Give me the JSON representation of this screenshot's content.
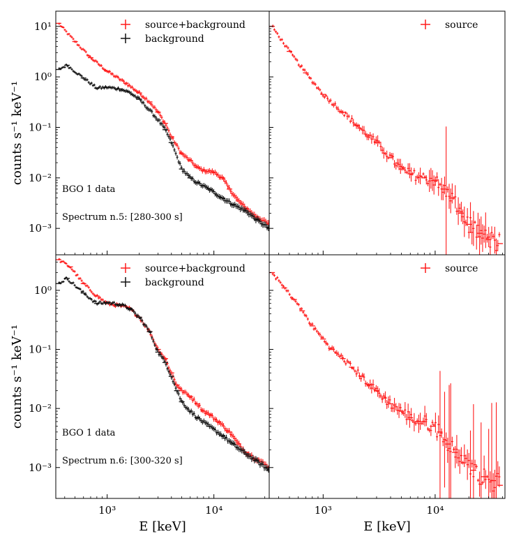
{
  "colors": {
    "source_background": "#ff1a1a",
    "background": "#111111",
    "source": "#ff1a1a"
  },
  "chart_data": [
    {
      "type": "scatter",
      "panel": "top-left",
      "xscale": "log",
      "yscale": "log",
      "xlim": [
        330,
        33000
      ],
      "ylim": [
        0.0003,
        20
      ],
      "ylabel": "counts s⁻¹ keV⁻¹",
      "xlabel": "",
      "yticks": [
        "10⁻³",
        "10⁻²",
        "10⁻¹",
        "10⁰",
        "10¹"
      ],
      "xticks": [],
      "legend_position": "top-right",
      "annotations": [
        "BGO 1 data",
        "Spectrum n.5: [280-300 s]"
      ],
      "series": [
        {
          "name": "source+background",
          "color_key": "source_background",
          "points": [
            [
              350,
              11.5
            ],
            [
              500,
              5.0
            ],
            [
              700,
              2.4
            ],
            [
              1000,
              1.3
            ],
            [
              1500,
              0.75
            ],
            [
              2000,
              0.48
            ],
            [
              2500,
              0.32
            ],
            [
              3000,
              0.2
            ],
            [
              3500,
              0.12
            ],
            [
              4000,
              0.065
            ],
            [
              5000,
              0.03
            ],
            [
              6000,
              0.022
            ],
            [
              7000,
              0.016
            ],
            [
              8000,
              0.014
            ],
            [
              10000,
              0.013
            ],
            [
              12000,
              0.01
            ],
            [
              14000,
              0.006
            ],
            [
              17000,
              0.0035
            ],
            [
              20000,
              0.0025
            ],
            [
              25000,
              0.0017
            ],
            [
              33000,
              0.0012
            ]
          ]
        },
        {
          "name": "background",
          "color_key": "background",
          "points": [
            [
              350,
              1.4
            ],
            [
              420,
              1.7
            ],
            [
              600,
              0.95
            ],
            [
              800,
              0.6
            ],
            [
              1000,
              0.62
            ],
            [
              1300,
              0.58
            ],
            [
              1600,
              0.5
            ],
            [
              2000,
              0.36
            ],
            [
              2500,
              0.22
            ],
            [
              3000,
              0.14
            ],
            [
              3500,
              0.09
            ],
            [
              4000,
              0.05
            ],
            [
              5000,
              0.015
            ],
            [
              6000,
              0.01
            ],
            [
              7000,
              0.008
            ],
            [
              9000,
              0.006
            ],
            [
              12000,
              0.004
            ],
            [
              15000,
              0.003
            ],
            [
              20000,
              0.0022
            ],
            [
              25000,
              0.0015
            ],
            [
              33000,
              0.001
            ]
          ]
        }
      ]
    },
    {
      "type": "scatter",
      "panel": "top-right",
      "xscale": "log",
      "yscale": "log",
      "xlim": [
        330,
        42000
      ],
      "ylim": [
        0.0003,
        20
      ],
      "ylabel": "",
      "xlabel": "",
      "yticks": [],
      "xticks": [],
      "legend_position": "top-right",
      "series": [
        {
          "name": "source",
          "color_key": "source",
          "points": [
            [
              350,
              10
            ],
            [
              500,
              3.2
            ],
            [
              700,
              1.2
            ],
            [
              1000,
              0.45
            ],
            [
              1500,
              0.2
            ],
            [
              2000,
              0.11
            ],
            [
              2500,
              0.07
            ],
            [
              3000,
              0.05
            ],
            [
              4000,
              0.025
            ],
            [
              5000,
              0.015
            ],
            [
              6000,
              0.012
            ],
            [
              8000,
              0.01
            ],
            [
              10000,
              0.009
            ],
            [
              12000,
              0.006
            ],
            [
              14000,
              0.004
            ],
            [
              17000,
              0.002
            ],
            [
              20000,
              0.0012
            ],
            [
              25000,
              0.0008
            ],
            [
              30000,
              0.0006
            ],
            [
              38000,
              0.0005
            ]
          ]
        }
      ]
    },
    {
      "type": "scatter",
      "panel": "bottom-left",
      "xscale": "log",
      "yscale": "log",
      "xlim": [
        330,
        33000
      ],
      "ylim": [
        0.0003,
        4
      ],
      "ylabel": "counts s⁻¹ keV⁻¹",
      "xlabel": "E [keV]",
      "yticks": [
        "10⁻³",
        "10⁻²",
        "10⁻¹",
        "10⁰"
      ],
      "xticks": [
        "10³",
        "10⁴"
      ],
      "legend_position": "top-right",
      "annotations": [
        "BGO 1 data",
        "Spectrum n.6: [300-320 s]"
      ],
      "series": [
        {
          "name": "source+background",
          "color_key": "source_background",
          "points": [
            [
              350,
              3.3
            ],
            [
              450,
              2.5
            ],
            [
              600,
              1.3
            ],
            [
              800,
              0.8
            ],
            [
              1000,
              0.6
            ],
            [
              1300,
              0.55
            ],
            [
              1600,
              0.5
            ],
            [
              2000,
              0.35
            ],
            [
              2500,
              0.2
            ],
            [
              3000,
              0.1
            ],
            [
              3500,
              0.07
            ],
            [
              4000,
              0.04
            ],
            [
              4500,
              0.025
            ],
            [
              5000,
              0.02
            ],
            [
              6000,
              0.016
            ],
            [
              7000,
              0.012
            ],
            [
              8000,
              0.009
            ],
            [
              9000,
              0.008
            ],
            [
              11000,
              0.006
            ],
            [
              14000,
              0.004
            ],
            [
              17000,
              0.0025
            ],
            [
              20000,
              0.0018
            ],
            [
              25000,
              0.0014
            ],
            [
              33000,
              0.001
            ]
          ]
        },
        {
          "name": "background",
          "color_key": "background",
          "points": [
            [
              350,
              1.3
            ],
            [
              420,
              1.6
            ],
            [
              600,
              0.9
            ],
            [
              800,
              0.6
            ],
            [
              1000,
              0.62
            ],
            [
              1300,
              0.58
            ],
            [
              1600,
              0.5
            ],
            [
              2000,
              0.35
            ],
            [
              2500,
              0.2
            ],
            [
              3000,
              0.09
            ],
            [
              3500,
              0.06
            ],
            [
              4000,
              0.035
            ],
            [
              4500,
              0.02
            ],
            [
              5000,
              0.013
            ],
            [
              6000,
              0.009
            ],
            [
              7000,
              0.007
            ],
            [
              9000,
              0.005
            ],
            [
              12000,
              0.0035
            ],
            [
              15000,
              0.0025
            ],
            [
              20000,
              0.0017
            ],
            [
              25000,
              0.0013
            ],
            [
              33000,
              0.0009
            ]
          ]
        }
      ]
    },
    {
      "type": "scatter",
      "panel": "bottom-right",
      "xscale": "log",
      "yscale": "log",
      "xlim": [
        330,
        42000
      ],
      "ylim": [
        0.0003,
        4
      ],
      "ylabel": "",
      "xlabel": "E [keV]",
      "yticks": [],
      "xticks": [
        "10³",
        "10⁴"
      ],
      "legend_position": "top-right",
      "series": [
        {
          "name": "source",
          "color_key": "source",
          "points": [
            [
              350,
              2.0
            ],
            [
              450,
              1.1
            ],
            [
              550,
              0.7
            ],
            [
              650,
              0.45
            ],
            [
              800,
              0.25
            ],
            [
              1000,
              0.15
            ],
            [
              1200,
              0.1
            ],
            [
              1500,
              0.07
            ],
            [
              1800,
              0.05
            ],
            [
              2200,
              0.035
            ],
            [
              2600,
              0.025
            ],
            [
              3000,
              0.02
            ],
            [
              3500,
              0.015
            ],
            [
              4000,
              0.012
            ],
            [
              5000,
              0.009
            ],
            [
              6000,
              0.007
            ],
            [
              7000,
              0.006
            ],
            [
              8000,
              0.006
            ],
            [
              9500,
              0.005
            ],
            [
              11000,
              0.004
            ],
            [
              13000,
              0.0025
            ],
            [
              15000,
              0.0018
            ],
            [
              18000,
              0.0012
            ],
            [
              22000,
              0.0009
            ],
            [
              27000,
              0.0007
            ],
            [
              33000,
              0.0006
            ],
            [
              38000,
              0.0005
            ]
          ]
        }
      ]
    }
  ]
}
